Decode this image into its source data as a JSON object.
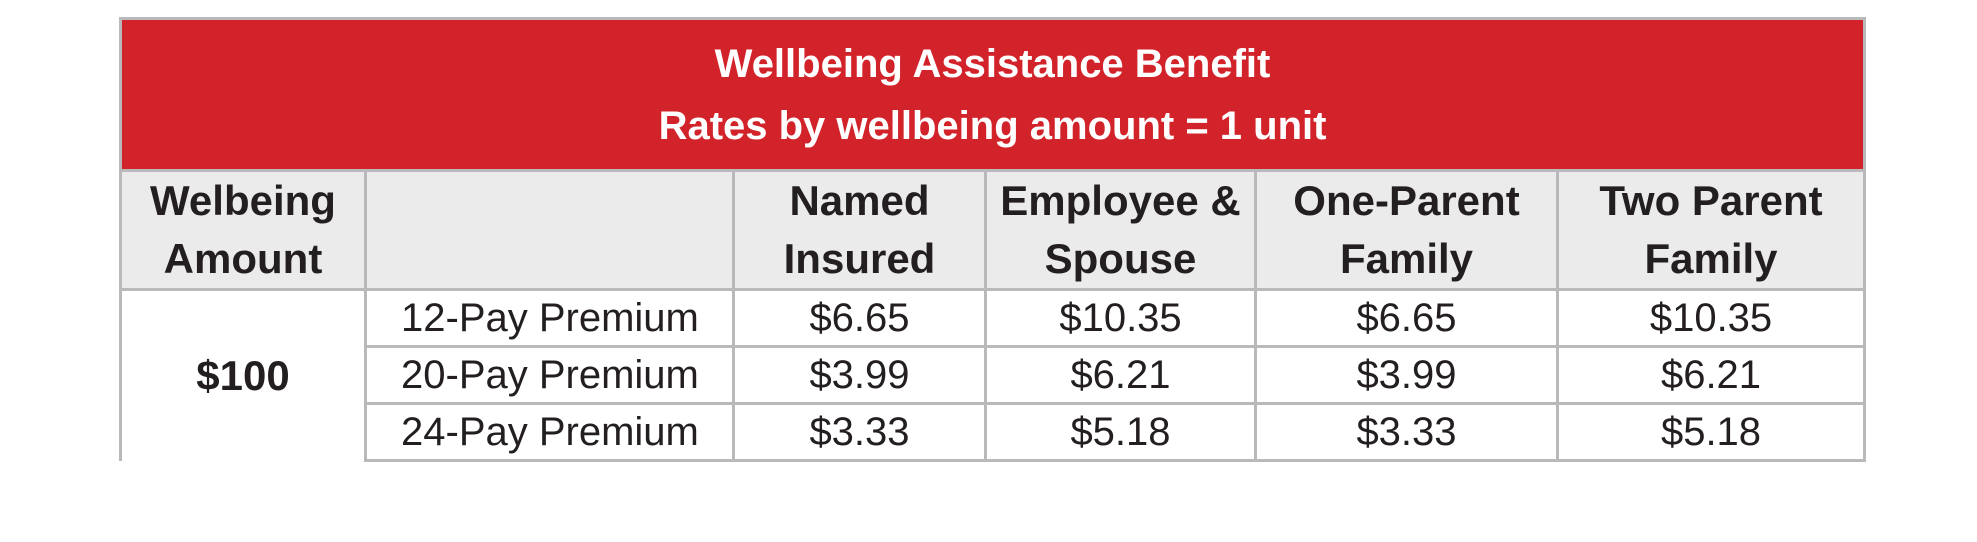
{
  "table": {
    "title_line1": "Wellbeing Assistance Benefit",
    "title_line2": "Rates by wellbeing amount = 1 unit",
    "headers": [
      "Welbeing\nAmount",
      "",
      "Named\nInsured",
      "Employee &\nSpouse",
      "One-Parent\nFamily",
      "Two Parent\nFamily"
    ],
    "amount": "$100",
    "rows": [
      {
        "label": "12-Pay Premium",
        "values": [
          "$6.65",
          "$10.35",
          "$6.65",
          "$10.35"
        ]
      },
      {
        "label": "20-Pay Premium",
        "values": [
          "$3.99",
          "$6.21",
          "$3.99",
          "$6.21"
        ]
      },
      {
        "label": "24-Pay Premium",
        "values": [
          "$3.33",
          "$5.18",
          "$3.33",
          "$5.18"
        ]
      }
    ]
  }
}
